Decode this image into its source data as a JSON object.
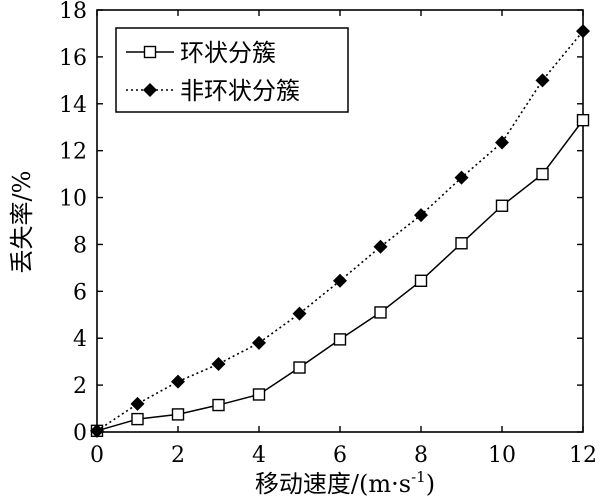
{
  "chart_data": {
    "type": "line",
    "xlabel": "移动速度/(m·s",
    "xlabel_superscript": "-1",
    "xlabel_suffix": ")",
    "ylabel": "丢失率/%",
    "xlim": [
      0,
      12
    ],
    "ylim": [
      0,
      18
    ],
    "x_ticks": [
      0,
      2,
      4,
      6,
      8,
      10,
      12
    ],
    "y_ticks": [
      0,
      2,
      4,
      6,
      8,
      10,
      12,
      14,
      16,
      18
    ],
    "grid": false,
    "legend_position": "top-left",
    "series": [
      {
        "name": "环状分簇",
        "marker": "open-square",
        "line_style": "solid",
        "x": [
          0,
          1,
          2,
          3,
          4,
          5,
          6,
          7,
          8,
          9,
          10,
          11,
          12
        ],
        "values": [
          0.05,
          0.55,
          0.75,
          1.15,
          1.6,
          2.75,
          3.95,
          5.1,
          6.45,
          8.05,
          9.65,
          11.0,
          13.3
        ]
      },
      {
        "name": "非环状分簇",
        "marker": "filled-diamond",
        "line_style": "dotted",
        "x": [
          0,
          1,
          2,
          3,
          4,
          5,
          6,
          7,
          8,
          9,
          10,
          11,
          12
        ],
        "values": [
          0.05,
          1.2,
          2.15,
          2.9,
          3.8,
          5.05,
          6.45,
          7.9,
          9.25,
          10.85,
          12.35,
          15.0,
          17.1
        ]
      }
    ]
  }
}
